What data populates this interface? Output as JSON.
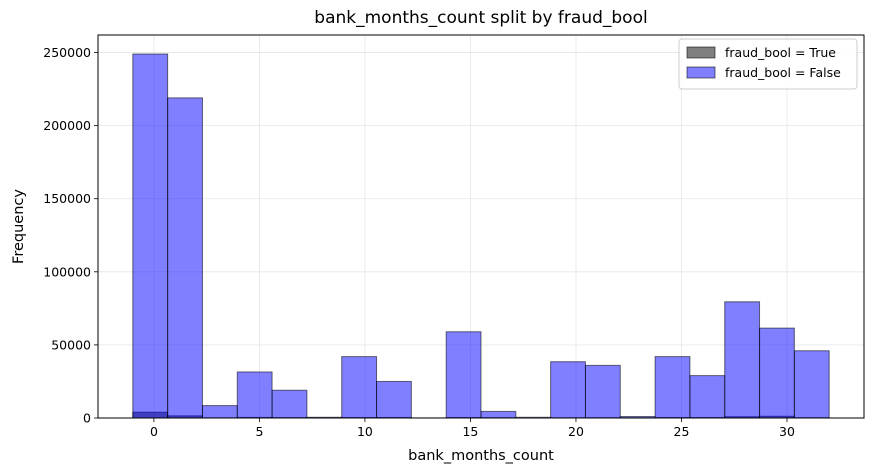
{
  "chart_data": {
    "type": "bar",
    "title": "bank_months_count split by fraud_bool",
    "xlabel": "bank_months_count",
    "ylabel": "Frequency",
    "xlim": [
      -2.65,
      33.65
    ],
    "ylim": [
      0,
      262000
    ],
    "x_ticks": [
      0,
      5,
      10,
      15,
      20,
      25,
      30
    ],
    "y_ticks": [
      0,
      50000,
      100000,
      150000,
      200000,
      250000
    ],
    "grid": true,
    "legend_position": "top-right",
    "bin_edges": [
      -1,
      0.65,
      2.3,
      3.95,
      5.6,
      7.25,
      8.9,
      10.55,
      12.2,
      13.85,
      15.5,
      17.15,
      18.8,
      20.45,
      22.1,
      23.75,
      25.4,
      27.05,
      28.7,
      30.35,
      32
    ],
    "series": [
      {
        "name": "fraud_bool = True",
        "color": "#000000",
        "values": [
          4000,
          1500,
          100,
          400,
          250,
          100,
          300,
          350,
          50,
          300,
          200,
          20,
          150,
          200,
          80,
          300,
          300,
          900,
          1200,
          200
        ]
      },
      {
        "name": "fraud_bool = False",
        "color": "#0000ff",
        "values": [
          249000,
          219000,
          8500,
          31500,
          19000,
          500,
          42000,
          25000,
          0,
          59000,
          4500,
          500,
          38500,
          36000,
          1000,
          42000,
          29000,
          79500,
          61500,
          46000
        ]
      }
    ]
  }
}
